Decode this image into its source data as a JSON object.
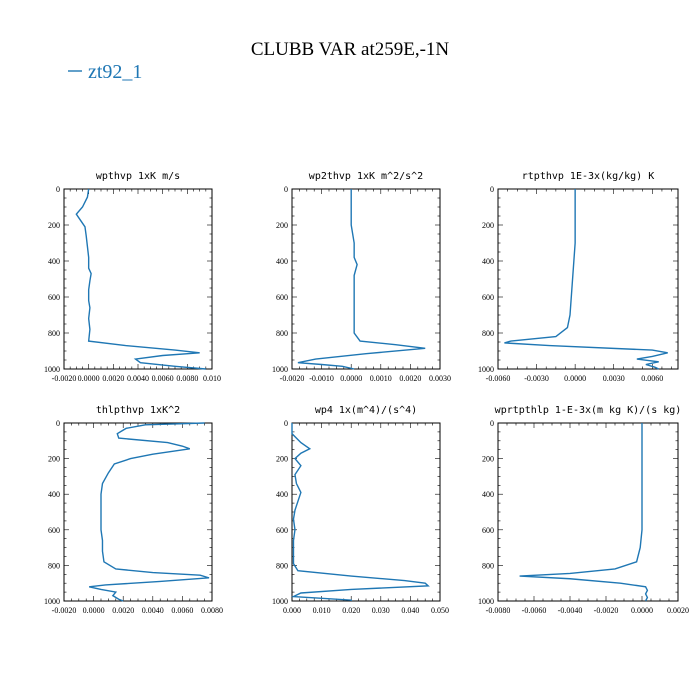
{
  "title": "CLUBB VAR at259E,-1N",
  "legend": {
    "label": "zt92_1",
    "color": "#1f77b4"
  },
  "chart_data": [
    {
      "type": "line",
      "title": "wpthvp  1xK m/s",
      "xlim": [
        -0.002,
        0.01
      ],
      "ylim": [
        1000,
        0
      ],
      "xticks": [
        "-0.0020",
        "0.0000",
        "0.0020",
        "0.0040",
        "0.0060",
        "0.0080",
        "0.010"
      ],
      "xtick_values": [
        -0.002,
        0,
        0.002,
        0.004,
        0.006,
        0.008,
        0.01
      ],
      "yticks": [
        "0",
        "200",
        "400",
        "600",
        "800",
        "1000"
      ],
      "series": [
        {
          "name": "zt92_1",
          "color": "#1f77b4",
          "points": [
            [
              0.0,
              0
            ],
            [
              -0.0001,
              45
            ],
            [
              -0.0005,
              100
            ],
            [
              -0.001,
              140
            ],
            [
              -0.0008,
              160
            ],
            [
              -0.0003,
              210
            ],
            [
              -0.0002,
              260
            ],
            [
              -0.0001,
              320
            ],
            [
              0.0,
              380
            ],
            [
              0.0,
              440
            ],
            [
              0.0002,
              470
            ],
            [
              0.0001,
              510
            ],
            [
              0.0,
              560
            ],
            [
              0.0,
              620
            ],
            [
              0.0001,
              660
            ],
            [
              0.0,
              720
            ],
            [
              0.0001,
              780
            ],
            [
              0.0,
              845
            ],
            [
              0.003,
              870
            ],
            [
              0.007,
              895
            ],
            [
              0.009,
              910
            ],
            [
              0.006,
              925
            ],
            [
              0.0038,
              945
            ],
            [
              0.0042,
              965
            ],
            [
              0.007,
              985
            ],
            [
              0.0095,
              1000
            ]
          ]
        }
      ]
    },
    {
      "type": "line",
      "title": "wp2thvp  1xK m^2/s^2",
      "xlim": [
        -0.002,
        0.003
      ],
      "ylim": [
        1000,
        0
      ],
      "xticks": [
        "-0.0020",
        "-0.0010",
        "0.0000",
        "0.0010",
        "0.0020",
        "0.0030"
      ],
      "xtick_values": [
        -0.002,
        -0.001,
        0,
        0.001,
        0.002,
        0.003
      ],
      "yticks": [
        "0",
        "200",
        "400",
        "600",
        "800",
        "1000"
      ],
      "series": [
        {
          "name": "zt92_1",
          "color": "#1f77b4",
          "points": [
            [
              0.0,
              0
            ],
            [
              0.0,
              100
            ],
            [
              0.0,
              200
            ],
            [
              0.0001,
              300
            ],
            [
              0.0001,
              380
            ],
            [
              0.0002,
              420
            ],
            [
              0.0001,
              480
            ],
            [
              0.0001,
              560
            ],
            [
              0.0001,
              640
            ],
            [
              0.0001,
              720
            ],
            [
              0.0001,
              800
            ],
            [
              0.0003,
              845
            ],
            [
              0.0015,
              865
            ],
            [
              0.0025,
              885
            ],
            [
              0.0005,
              915
            ],
            [
              -0.0012,
              945
            ],
            [
              -0.0018,
              965
            ],
            [
              -0.001,
              975
            ],
            [
              -0.0003,
              985
            ],
            [
              0.0001,
              1000
            ]
          ]
        }
      ]
    },
    {
      "type": "line",
      "title": "rtpthvp  1E-3x(kg/kg) K",
      "xlim": [
        -0.006,
        0.008
      ],
      "ylim": [
        1000,
        0
      ],
      "xticks": [
        "-0.0060",
        "-0.0030",
        "0.0000",
        "0.0030",
        "0.0060"
      ],
      "xtick_values": [
        -0.006,
        -0.003,
        0,
        0.003,
        0.006
      ],
      "yticks": [
        "0",
        "200",
        "400",
        "600",
        "800",
        "1000"
      ],
      "series": [
        {
          "name": "zt92_1",
          "color": "#1f77b4",
          "points": [
            [
              0.0,
              0
            ],
            [
              0.0,
              100
            ],
            [
              0.0,
              200
            ],
            [
              0.0,
              300
            ],
            [
              -0.0001,
              400
            ],
            [
              -0.0002,
              500
            ],
            [
              -0.0003,
              600
            ],
            [
              -0.0004,
              700
            ],
            [
              -0.0006,
              770
            ],
            [
              -0.0015,
              820
            ],
            [
              -0.005,
              845
            ],
            [
              -0.0055,
              855
            ],
            [
              -0.002,
              870
            ],
            [
              0.006,
              895
            ],
            [
              0.0072,
              910
            ],
            [
              0.006,
              930
            ],
            [
              0.0048,
              945
            ],
            [
              0.0065,
              960
            ],
            [
              0.0055,
              975
            ],
            [
              0.0062,
              990
            ],
            [
              0.0065,
              1000
            ]
          ]
        }
      ]
    },
    {
      "type": "line",
      "title": "thlpthvp  1xK^2",
      "xlim": [
        -0.002,
        0.008
      ],
      "ylim": [
        1000,
        0
      ],
      "xticks": [
        "-0.0020",
        "0.0000",
        "0.0020",
        "0.0040",
        "0.0060",
        "0.0080"
      ],
      "xtick_values": [
        -0.002,
        0,
        0.002,
        0.004,
        0.006,
        0.008
      ],
      "yticks": [
        "0",
        "200",
        "400",
        "600",
        "800",
        "1000"
      ],
      "series": [
        {
          "name": "zt92_1",
          "color": "#1f77b4",
          "points": [
            [
              0.0075,
              0
            ],
            [
              0.0035,
              10
            ],
            [
              0.0022,
              30
            ],
            [
              0.0016,
              60
            ],
            [
              0.0017,
              85
            ],
            [
              0.005,
              110
            ],
            [
              0.006,
              130
            ],
            [
              0.0065,
              145
            ],
            [
              0.004,
              175
            ],
            [
              0.0025,
              200
            ],
            [
              0.0014,
              230
            ],
            [
              0.001,
              280
            ],
            [
              0.0006,
              340
            ],
            [
              0.0005,
              400
            ],
            [
              0.0005,
              450
            ],
            [
              0.0005,
              500
            ],
            [
              0.0005,
              550
            ],
            [
              0.0005,
              600
            ],
            [
              0.0006,
              660
            ],
            [
              0.0006,
              720
            ],
            [
              0.0007,
              780
            ],
            [
              0.0015,
              820
            ],
            [
              0.004,
              840
            ],
            [
              0.0072,
              855
            ],
            [
              0.0078,
              870
            ],
            [
              0.0045,
              890
            ],
            [
              0.0008,
              910
            ],
            [
              -0.0003,
              920
            ],
            [
              0.0005,
              935
            ],
            [
              0.0015,
              950
            ],
            [
              0.0013,
              970
            ],
            [
              0.0017,
              990
            ],
            [
              0.002,
              1000
            ]
          ]
        }
      ]
    },
    {
      "type": "line",
      "title": "wp4  1x(m^4)/(s^4)",
      "xlim": [
        0.0,
        0.05
      ],
      "ylim": [
        1000,
        0
      ],
      "xticks": [
        "0.000",
        "0.010",
        "0.020",
        "0.030",
        "0.040",
        "0.050"
      ],
      "xtick_values": [
        0,
        0.01,
        0.02,
        0.03,
        0.04,
        0.05
      ],
      "yticks": [
        "0",
        "200",
        "400",
        "600",
        "800",
        "1000"
      ],
      "series": [
        {
          "name": "zt92_1",
          "color": "#1f77b4",
          "points": [
            [
              0.0,
              0
            ],
            [
              0.0,
              60
            ],
            [
              0.003,
              110
            ],
            [
              0.006,
              145
            ],
            [
              0.003,
              170
            ],
            [
              0.001,
              200
            ],
            [
              0.003,
              240
            ],
            [
              0.001,
              290
            ],
            [
              0.0015,
              340
            ],
            [
              0.003,
              390
            ],
            [
              0.002,
              440
            ],
            [
              0.001,
              490
            ],
            [
              0.0005,
              540
            ],
            [
              0.001,
              600
            ],
            [
              0.0005,
              660
            ],
            [
              0.0005,
              720
            ],
            [
              0.0005,
              790
            ],
            [
              0.002,
              830
            ],
            [
              0.02,
              860
            ],
            [
              0.038,
              885
            ],
            [
              0.045,
              900
            ],
            [
              0.046,
              915
            ],
            [
              0.02,
              935
            ],
            [
              0.003,
              955
            ],
            [
              0.0005,
              975
            ],
            [
              0.02,
              995
            ],
            [
              0.02,
              1000
            ]
          ]
        }
      ]
    },
    {
      "type": "line",
      "title": "wprtpthlp  1-E-3x(m kg K)/(s kg)",
      "xlim": [
        -0.008,
        0.002
      ],
      "ylim": [
        1000,
        0
      ],
      "xticks": [
        "-0.0080",
        "-0.0060",
        "-0.0040",
        "-0.0020",
        "0.0000",
        "0.0020"
      ],
      "xtick_values": [
        -0.008,
        -0.006,
        -0.004,
        -0.002,
        0,
        0.002
      ],
      "yticks": [
        "0",
        "200",
        "400",
        "600",
        "800",
        "1000"
      ],
      "series": [
        {
          "name": "zt92_1",
          "color": "#1f77b4",
          "points": [
            [
              0.0,
              0
            ],
            [
              0.0,
              100
            ],
            [
              0.0,
              200
            ],
            [
              0.0,
              300
            ],
            [
              0.0,
              400
            ],
            [
              0.0,
              500
            ],
            [
              0.0,
              600
            ],
            [
              -0.0001,
              700
            ],
            [
              -0.0003,
              780
            ],
            [
              -0.0015,
              820
            ],
            [
              -0.004,
              845
            ],
            [
              -0.0068,
              860
            ],
            [
              -0.004,
              875
            ],
            [
              -0.0012,
              900
            ],
            [
              0.0002,
              920
            ],
            [
              0.0003,
              940
            ],
            [
              0.0002,
              960
            ],
            [
              0.0003,
              980
            ],
            [
              0.0002,
              1000
            ]
          ]
        }
      ]
    }
  ]
}
